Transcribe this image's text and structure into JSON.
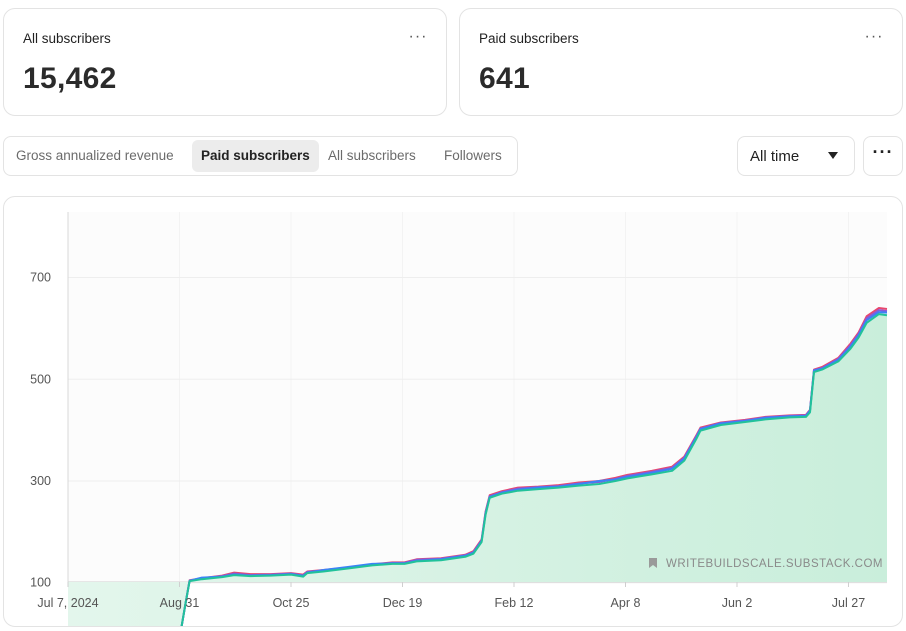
{
  "stats": {
    "all_subscribers": {
      "label": "All subscribers",
      "value": "15,462"
    },
    "paid_subscribers": {
      "label": "Paid subscribers",
      "value": "641"
    },
    "menu_glyph": "···"
  },
  "tabs": [
    {
      "label": "Gross annualized revenue",
      "active": false
    },
    {
      "label": "Paid subscribers",
      "active": true
    },
    {
      "label": "All subscribers",
      "active": false
    },
    {
      "label": "Followers",
      "active": false
    }
  ],
  "range_select": {
    "value": "All time"
  },
  "more_glyph": "···",
  "watermark": "WRITEBUILDSCALE.SUBSTACK.COM",
  "colors": {
    "area_fill": "#c9eedb",
    "series": [
      "#e8476e",
      "#8a5ad6",
      "#3b82f6",
      "#22c29a"
    ]
  },
  "chart_data": {
    "type": "area",
    "ylim": [
      0,
      700
    ],
    "yticks": [
      100,
      300,
      500,
      700
    ],
    "ytick_labels": [
      "100",
      "300",
      "500",
      "700"
    ],
    "xlim_days": [
      0,
      404
    ],
    "xticks": [
      {
        "label": "Jul 7, 2024",
        "day": 0
      },
      {
        "label": "Aug 31",
        "day": 55
      },
      {
        "label": "Oct 25",
        "day": 110
      },
      {
        "label": "Dec 19",
        "day": 165
      },
      {
        "label": "Feb 12",
        "day": 220
      },
      {
        "label": "Apr 8",
        "day": 275
      },
      {
        "label": "Jun 2",
        "day": 330
      },
      {
        "label": "Jul 27",
        "day": 385
      }
    ],
    "grid": true,
    "series": [
      {
        "values": [
          [
            0,
            2
          ],
          [
            10,
            3
          ],
          [
            18,
            4
          ],
          [
            24,
            8
          ],
          [
            36,
            9
          ],
          [
            44,
            11
          ],
          [
            56,
            13
          ],
          [
            58,
            60
          ],
          [
            60,
            105
          ],
          [
            66,
            109
          ],
          [
            76,
            114
          ],
          [
            82,
            120
          ],
          [
            90,
            117
          ],
          [
            100,
            117
          ],
          [
            110,
            119
          ],
          [
            116,
            116
          ],
          [
            118,
            122
          ],
          [
            126,
            125
          ],
          [
            138,
            130
          ],
          [
            150,
            136
          ],
          [
            160,
            140
          ],
          [
            166,
            140
          ],
          [
            172,
            146
          ],
          [
            184,
            148
          ],
          [
            196,
            155
          ],
          [
            200,
            162
          ],
          [
            204,
            185
          ],
          [
            206,
            240
          ],
          [
            208,
            272
          ],
          [
            214,
            280
          ],
          [
            222,
            287
          ],
          [
            232,
            289
          ],
          [
            242,
            292
          ],
          [
            252,
            297
          ],
          [
            262,
            300
          ],
          [
            270,
            306
          ],
          [
            276,
            312
          ],
          [
            288,
            320
          ],
          [
            298,
            328
          ],
          [
            304,
            348
          ],
          [
            310,
            390
          ],
          [
            312,
            405
          ],
          [
            322,
            415
          ],
          [
            334,
            420
          ],
          [
            344,
            426
          ],
          [
            356,
            429
          ],
          [
            364,
            430
          ],
          [
            366,
            440
          ],
          [
            368,
            519
          ],
          [
            372,
            524
          ],
          [
            380,
            542
          ],
          [
            386,
            570
          ],
          [
            390,
            592
          ],
          [
            394,
            624
          ],
          [
            400,
            640
          ],
          [
            404,
            638
          ]
        ]
      },
      {
        "values": [
          [
            0,
            2
          ],
          [
            10,
            3
          ],
          [
            18,
            4
          ],
          [
            24,
            8
          ],
          [
            36,
            9
          ],
          [
            44,
            11
          ],
          [
            56,
            13
          ],
          [
            58,
            60
          ],
          [
            60,
            104
          ],
          [
            66,
            109
          ],
          [
            76,
            113
          ],
          [
            82,
            118
          ],
          [
            90,
            115
          ],
          [
            100,
            116
          ],
          [
            110,
            118
          ],
          [
            116,
            114
          ],
          [
            118,
            121
          ],
          [
            126,
            124
          ],
          [
            138,
            129
          ],
          [
            150,
            135
          ],
          [
            160,
            139
          ],
          [
            166,
            139
          ],
          [
            172,
            145
          ],
          [
            184,
            147
          ],
          [
            196,
            154
          ],
          [
            200,
            160
          ],
          [
            204,
            183
          ],
          [
            206,
            238
          ],
          [
            208,
            270
          ],
          [
            214,
            278
          ],
          [
            222,
            285
          ],
          [
            232,
            288
          ],
          [
            242,
            290
          ],
          [
            252,
            295
          ],
          [
            262,
            298
          ],
          [
            270,
            304
          ],
          [
            276,
            310
          ],
          [
            288,
            318
          ],
          [
            298,
            326
          ],
          [
            304,
            346
          ],
          [
            310,
            388
          ],
          [
            312,
            403
          ],
          [
            322,
            414
          ],
          [
            334,
            419
          ],
          [
            344,
            425
          ],
          [
            356,
            428
          ],
          [
            364,
            429
          ],
          [
            366,
            439
          ],
          [
            368,
            518
          ],
          [
            372,
            522
          ],
          [
            380,
            540
          ],
          [
            386,
            567
          ],
          [
            390,
            589
          ],
          [
            394,
            620
          ],
          [
            400,
            636
          ],
          [
            404,
            634
          ]
        ]
      },
      {
        "values": [
          [
            0,
            2
          ],
          [
            10,
            3
          ],
          [
            18,
            4
          ],
          [
            24,
            8
          ],
          [
            36,
            9
          ],
          [
            44,
            11
          ],
          [
            56,
            13
          ],
          [
            58,
            60
          ],
          [
            60,
            104
          ],
          [
            66,
            110
          ],
          [
            76,
            112
          ],
          [
            82,
            116
          ],
          [
            90,
            114
          ],
          [
            100,
            115
          ],
          [
            110,
            117
          ],
          [
            116,
            114
          ],
          [
            118,
            120
          ],
          [
            126,
            125
          ],
          [
            138,
            131
          ],
          [
            150,
            137
          ],
          [
            160,
            138
          ],
          [
            166,
            138
          ],
          [
            172,
            143
          ],
          [
            184,
            146
          ],
          [
            196,
            153
          ],
          [
            200,
            159
          ],
          [
            204,
            182
          ],
          [
            206,
            236
          ],
          [
            208,
            269
          ],
          [
            214,
            277
          ],
          [
            222,
            283
          ],
          [
            232,
            287
          ],
          [
            242,
            289
          ],
          [
            252,
            294
          ],
          [
            262,
            300
          ],
          [
            270,
            303
          ],
          [
            276,
            308
          ],
          [
            288,
            316
          ],
          [
            298,
            324
          ],
          [
            304,
            344
          ],
          [
            310,
            386
          ],
          [
            312,
            402
          ],
          [
            322,
            413
          ],
          [
            334,
            418
          ],
          [
            344,
            424
          ],
          [
            356,
            427
          ],
          [
            364,
            428
          ],
          [
            366,
            438
          ],
          [
            368,
            517
          ],
          [
            372,
            521
          ],
          [
            380,
            538
          ],
          [
            386,
            564
          ],
          [
            390,
            586
          ],
          [
            394,
            616
          ],
          [
            400,
            632
          ],
          [
            404,
            631
          ]
        ]
      },
      {
        "values": [
          [
            0,
            2
          ],
          [
            10,
            3
          ],
          [
            18,
            4
          ],
          [
            24,
            8
          ],
          [
            36,
            9
          ],
          [
            44,
            11
          ],
          [
            56,
            13
          ],
          [
            58,
            60
          ],
          [
            60,
            103
          ],
          [
            66,
            107
          ],
          [
            76,
            111
          ],
          [
            82,
            115
          ],
          [
            90,
            113
          ],
          [
            100,
            114
          ],
          [
            110,
            116
          ],
          [
            116,
            112
          ],
          [
            118,
            119
          ],
          [
            126,
            122
          ],
          [
            138,
            128
          ],
          [
            150,
            134
          ],
          [
            160,
            137
          ],
          [
            166,
            137
          ],
          [
            172,
            142
          ],
          [
            184,
            144
          ],
          [
            196,
            151
          ],
          [
            200,
            157
          ],
          [
            204,
            180
          ],
          [
            206,
            234
          ],
          [
            208,
            267
          ],
          [
            214,
            275
          ],
          [
            222,
            281
          ],
          [
            232,
            284
          ],
          [
            242,
            287
          ],
          [
            252,
            291
          ],
          [
            262,
            294
          ],
          [
            270,
            300
          ],
          [
            276,
            305
          ],
          [
            288,
            313
          ],
          [
            298,
            320
          ],
          [
            304,
            340
          ],
          [
            310,
            383
          ],
          [
            312,
            399
          ],
          [
            322,
            410
          ],
          [
            334,
            416
          ],
          [
            344,
            421
          ],
          [
            356,
            425
          ],
          [
            364,
            426
          ],
          [
            366,
            435
          ],
          [
            368,
            514
          ],
          [
            372,
            519
          ],
          [
            380,
            535
          ],
          [
            386,
            560
          ],
          [
            390,
            582
          ],
          [
            394,
            611
          ],
          [
            400,
            628
          ],
          [
            404,
            626
          ]
        ]
      }
    ]
  }
}
